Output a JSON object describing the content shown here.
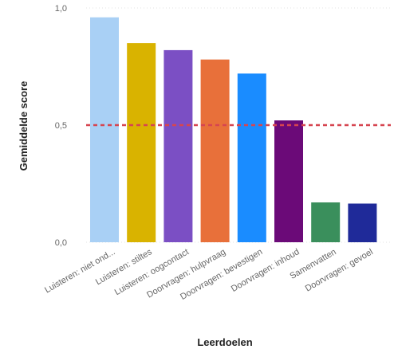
{
  "chart_data": {
    "type": "bar",
    "xlabel": "Leerdoelen",
    "ylabel": "Gemiddelde score",
    "ylim": [
      0,
      1
    ],
    "yticks": [
      "0,0",
      "0,5",
      "1,0"
    ],
    "ytick_values": [
      0,
      0.5,
      1.0
    ],
    "grid": true,
    "reference_line": {
      "value": 0.5,
      "color": "#d64550",
      "style": "dashed"
    },
    "categories": [
      "Luisteren: niet ond...",
      "Luisteren: stiltes",
      "Luisteren: oogcontact",
      "Doorvragen: hulpvraag",
      "Doorvragen: bevestigen",
      "Doorvragen: inhoud",
      "Samenvatten",
      "Doorvragen: gevoel"
    ],
    "values": [
      0.96,
      0.85,
      0.82,
      0.78,
      0.72,
      0.52,
      0.17,
      0.165
    ],
    "colors": [
      "#a9d0f5",
      "#d9b300",
      "#7b4fc4",
      "#e8703a",
      "#1a8cff",
      "#6b0a78",
      "#3a8f5c",
      "#1f2a99"
    ]
  }
}
